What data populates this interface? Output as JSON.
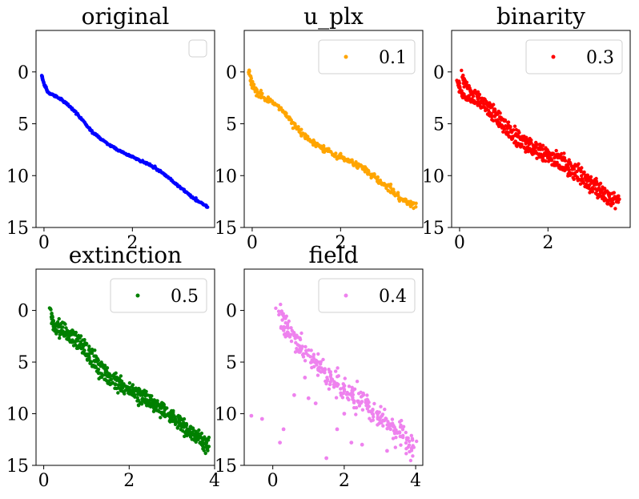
{
  "chart_data": [
    {
      "type": "scatter",
      "title": "original",
      "xlabel": "",
      "ylabel": "",
      "xlim": [
        -0.18,
        3.86
      ],
      "ylim": [
        15,
        -4
      ],
      "y_inverted": true,
      "xticks": [
        0,
        2
      ],
      "yticks": [
        0,
        5,
        10,
        15
      ],
      "grid": false,
      "legend": {
        "placement": "top-right",
        "entries": [
          ""
        ]
      },
      "series": [
        {
          "name": "",
          "color": "#0000ff",
          "spread": 0.05,
          "points": [
            [
              -0.05,
              0.3
            ],
            [
              0.0,
              1.2
            ],
            [
              0.1,
              2.0
            ],
            [
              0.3,
              2.4
            ],
            [
              0.5,
              3.0
            ],
            [
              0.7,
              3.8
            ],
            [
              0.9,
              4.8
            ],
            [
              1.1,
              5.8
            ],
            [
              1.3,
              6.5
            ],
            [
              1.5,
              7.1
            ],
            [
              1.7,
              7.6
            ],
            [
              1.9,
              8.0
            ],
            [
              2.1,
              8.4
            ],
            [
              2.3,
              8.8
            ],
            [
              2.5,
              9.2
            ],
            [
              2.7,
              9.8
            ],
            [
              2.9,
              10.5
            ],
            [
              3.1,
              11.2
            ],
            [
              3.3,
              11.9
            ],
            [
              3.5,
              12.5
            ],
            [
              3.7,
              13.0
            ]
          ]
        }
      ]
    },
    {
      "type": "scatter",
      "title": "u_plx",
      "xlabel": "",
      "ylabel": "",
      "xlim": [
        -0.18,
        3.86
      ],
      "ylim": [
        15,
        -4
      ],
      "y_inverted": true,
      "xticks": [
        0,
        2
      ],
      "yticks": [
        0,
        5,
        10,
        15
      ],
      "grid": false,
      "legend": {
        "placement": "top-right",
        "entries": [
          "0.1"
        ]
      },
      "series": [
        {
          "name": "0.1",
          "color": "#ffa500",
          "spread": 0.15,
          "points": [
            [
              -0.08,
              0.0
            ],
            [
              0.0,
              1.2
            ],
            [
              0.1,
              2.0
            ],
            [
              0.3,
              2.5
            ],
            [
              0.5,
              3.0
            ],
            [
              0.7,
              3.8
            ],
            [
              0.9,
              4.8
            ],
            [
              1.1,
              5.8
            ],
            [
              1.3,
              6.5
            ],
            [
              1.5,
              7.1
            ],
            [
              1.7,
              7.6
            ],
            [
              1.9,
              8.0
            ],
            [
              2.1,
              8.4
            ],
            [
              2.3,
              8.8
            ],
            [
              2.5,
              9.3
            ],
            [
              2.7,
              9.9
            ],
            [
              2.9,
              10.6
            ],
            [
              3.1,
              11.3
            ],
            [
              3.3,
              12.0
            ],
            [
              3.5,
              12.5
            ],
            [
              3.7,
              13.0
            ]
          ]
        }
      ]
    },
    {
      "type": "scatter",
      "title": "binarity",
      "xlabel": "",
      "ylabel": "",
      "xlim": [
        -0.18,
        3.86
      ],
      "ylim": [
        15,
        -4
      ],
      "y_inverted": true,
      "xticks": [
        0,
        2
      ],
      "yticks": [
        0,
        5,
        10,
        15
      ],
      "grid": false,
      "legend": {
        "placement": "top-right",
        "entries": [
          "0.3"
        ]
      },
      "series": [
        {
          "name": "0.3",
          "color": "#ff0000",
          "spread": 0.2,
          "points": [
            [
              -0.05,
              0.8
            ],
            [
              0.0,
              1.7
            ],
            [
              0.1,
              2.3
            ],
            [
              0.3,
              2.7
            ],
            [
              0.5,
              3.3
            ],
            [
              0.7,
              4.1
            ],
            [
              0.9,
              5.1
            ],
            [
              1.1,
              6.1
            ],
            [
              1.3,
              6.8
            ],
            [
              1.5,
              7.4
            ],
            [
              1.7,
              7.9
            ],
            [
              1.9,
              8.3
            ],
            [
              2.1,
              8.7
            ],
            [
              2.3,
              9.2
            ],
            [
              2.5,
              9.7
            ],
            [
              2.7,
              10.3
            ],
            [
              2.9,
              11.0
            ],
            [
              3.1,
              11.7
            ],
            [
              3.3,
              12.3
            ],
            [
              3.5,
              12.9
            ]
          ],
          "secondary_points": [
            [
              0.05,
              0.3
            ],
            [
              0.15,
              1.3
            ],
            [
              0.3,
              1.9
            ],
            [
              0.5,
              2.5
            ],
            [
              0.7,
              3.2
            ],
            [
              0.9,
              4.2
            ],
            [
              1.1,
              5.2
            ],
            [
              1.3,
              6.0
            ],
            [
              1.5,
              6.6
            ],
            [
              1.7,
              7.1
            ],
            [
              1.9,
              7.5
            ],
            [
              2.1,
              7.9
            ],
            [
              2.3,
              8.3
            ],
            [
              2.5,
              8.8
            ],
            [
              2.7,
              9.4
            ],
            [
              2.9,
              10.1
            ],
            [
              3.1,
              10.8
            ],
            [
              3.3,
              11.5
            ],
            [
              3.5,
              12.1
            ],
            [
              3.6,
              12.4
            ]
          ]
        }
      ]
    },
    {
      "type": "scatter",
      "title": "extinction",
      "xlabel": "",
      "ylabel": "",
      "xlim": [
        -0.18,
        4.0
      ],
      "ylim": [
        15,
        -4
      ],
      "y_inverted": true,
      "xticks": [
        0,
        2,
        4
      ],
      "yticks": [
        0,
        5,
        10,
        15
      ],
      "grid": false,
      "legend": {
        "placement": "top-right",
        "entries": [
          "0.5"
        ]
      },
      "series": [
        {
          "name": "0.5",
          "color": "#008000",
          "spread": 0.25,
          "points": [
            [
              0.18,
              0.2
            ],
            [
              0.2,
              1.1
            ],
            [
              0.3,
              1.9
            ],
            [
              0.5,
              2.4
            ],
            [
              0.7,
              3.0
            ],
            [
              0.9,
              3.9
            ],
            [
              1.1,
              5.0
            ],
            [
              1.3,
              6.0
            ],
            [
              1.5,
              6.7
            ],
            [
              1.7,
              7.3
            ],
            [
              1.9,
              7.8
            ],
            [
              2.1,
              8.2
            ],
            [
              2.3,
              8.7
            ],
            [
              2.5,
              9.1
            ],
            [
              2.7,
              9.6
            ],
            [
              2.9,
              10.2
            ],
            [
              3.1,
              10.9
            ],
            [
              3.3,
              11.6
            ],
            [
              3.5,
              12.3
            ],
            [
              3.7,
              12.9
            ],
            [
              3.85,
              13.3
            ]
          ],
          "secondary_points": [
            [
              0.3,
              1.2
            ],
            [
              0.5,
              1.8
            ],
            [
              0.7,
              2.3
            ],
            [
              0.9,
              3.0
            ],
            [
              1.1,
              4.0
            ],
            [
              1.3,
              5.1
            ],
            [
              1.5,
              6.0
            ],
            [
              1.7,
              6.7
            ],
            [
              1.9,
              7.2
            ],
            [
              2.1,
              7.6
            ],
            [
              2.3,
              8.0
            ],
            [
              2.5,
              8.5
            ],
            [
              2.7,
              9.0
            ],
            [
              2.9,
              9.6
            ],
            [
              3.1,
              10.3
            ],
            [
              3.3,
              11.0
            ],
            [
              3.5,
              11.7
            ],
            [
              3.7,
              12.3
            ],
            [
              3.85,
              12.8
            ]
          ]
        }
      ]
    },
    {
      "type": "scatter",
      "title": "field",
      "xlabel": "",
      "ylabel": "",
      "xlim": [
        -0.8,
        4.2
      ],
      "ylim": [
        15,
        -4
      ],
      "y_inverted": true,
      "xticks": [
        0,
        2,
        4
      ],
      "yticks": [
        0,
        5,
        10,
        15
      ],
      "grid": false,
      "legend": {
        "placement": "top-right",
        "entries": [
          "0.4"
        ]
      },
      "series": [
        {
          "name": "0.4",
          "color": "#ee82ee",
          "spread": 0.6,
          "points": [
            [
              0.2,
              0.3
            ],
            [
              0.3,
              1.2
            ],
            [
              0.4,
              2.0
            ],
            [
              0.6,
              2.7
            ],
            [
              0.8,
              3.5
            ],
            [
              1.0,
              4.4
            ],
            [
              1.2,
              5.3
            ],
            [
              1.4,
              6.0
            ],
            [
              1.6,
              6.6
            ],
            [
              1.8,
              7.1
            ],
            [
              2.0,
              7.6
            ],
            [
              2.2,
              8.1
            ],
            [
              2.4,
              8.6
            ],
            [
              2.6,
              9.1
            ],
            [
              2.8,
              9.8
            ],
            [
              3.0,
              10.4
            ],
            [
              3.2,
              11.0
            ],
            [
              3.4,
              11.6
            ],
            [
              3.6,
              12.2
            ],
            [
              3.8,
              12.8
            ],
            [
              3.95,
              13.3
            ]
          ],
          "outliers": [
            [
              -0.6,
              10.2
            ],
            [
              -0.3,
              10.5
            ],
            [
              0.2,
              12.8
            ],
            [
              0.3,
              11.5
            ],
            [
              1.5,
              14.3
            ],
            [
              0.6,
              8.2
            ],
            [
              1.2,
              9.0
            ],
            [
              1.8,
              11.5
            ],
            [
              2.2,
              12.8
            ],
            [
              2.5,
              13.0
            ],
            [
              3.2,
              13.6
            ],
            [
              1.0,
              8.5
            ],
            [
              2.0,
              10.0
            ],
            [
              0.9,
              6.5
            ]
          ]
        }
      ]
    }
  ]
}
